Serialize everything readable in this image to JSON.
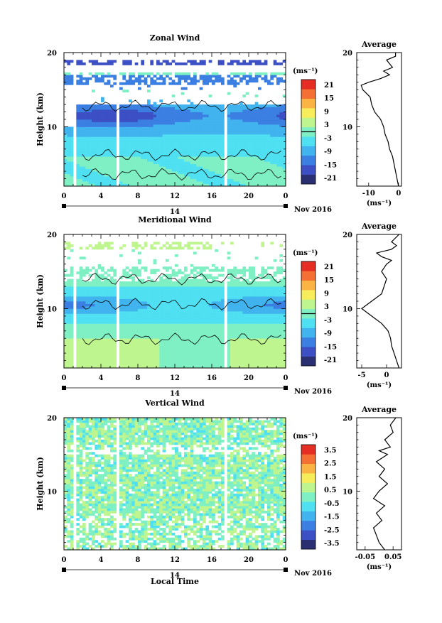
{
  "figure": {
    "xlabel": "Local Time"
  },
  "colors": {
    "scale": [
      "#2a2f72",
      "#3c4fc4",
      "#3b7fe2",
      "#41b3ee",
      "#4fe0f2",
      "#7ff0c4",
      "#bff58f",
      "#f7ec5a",
      "#f9b443",
      "#f36f33",
      "#e62d23"
    ],
    "zero_line": "#000000"
  },
  "chart_data": [
    {
      "type": "heatmap",
      "title": "Zonal Wind",
      "ylabel": "Height (km)",
      "ylim": [
        2,
        20
      ],
      "yticks": [
        10,
        20
      ],
      "x_ticks": [
        "0",
        "4",
        "8",
        "12",
        "16",
        "20",
        "0"
      ],
      "date_tick": "14",
      "date_label": "Nov 2016",
      "gaps": [
        1.2,
        5.8,
        17.6
      ],
      "colorbar": {
        "unit": "(ms⁻¹)",
        "ticks": [
          "21",
          "15",
          "9",
          "3",
          "-3",
          "-9",
          "-15",
          "-21"
        ],
        "range": [
          -24,
          24
        ],
        "zero_line": 0
      },
      "average": {
        "title": "Average",
        "xlabel": "(ms⁻¹)",
        "xticks": [
          "-10",
          "0"
        ],
        "xlim": [
          -14,
          1
        ],
        "yticks": [
          "10",
          "20"
        ],
        "profile": [
          [
            0.0,
            2
          ],
          [
            -0.5,
            3
          ],
          [
            -1,
            4
          ],
          [
            -1.5,
            5
          ],
          [
            -2,
            6
          ],
          [
            -3,
            7
          ],
          [
            -3.5,
            8
          ],
          [
            -4.5,
            9
          ],
          [
            -5,
            10
          ],
          [
            -6,
            11
          ],
          [
            -8,
            12
          ],
          [
            -9,
            13
          ],
          [
            -9.5,
            14
          ],
          [
            -12,
            15
          ],
          [
            -12.5,
            15.6
          ],
          [
            -10,
            16
          ],
          [
            -6,
            16.5
          ],
          [
            -3,
            17
          ],
          [
            -5,
            17.5
          ],
          [
            -2,
            18
          ],
          [
            -3,
            18.5
          ],
          [
            -4,
            19
          ],
          [
            -1,
            19.5
          ],
          [
            -1,
            20
          ]
        ]
      }
    },
    {
      "type": "heatmap",
      "title": "Meridional Wind",
      "ylabel": "Height (km)",
      "ylim": [
        2,
        20
      ],
      "yticks": [
        10,
        20
      ],
      "x_ticks": [
        "0",
        "4",
        "8",
        "12",
        "16",
        "20",
        "0"
      ],
      "date_tick": "14",
      "date_label": "Nov 2016",
      "gaps": [
        1.2,
        5.8,
        17.6
      ],
      "colorbar": {
        "unit": "(ms⁻¹)",
        "ticks": [
          "21",
          "15",
          "9",
          "3",
          "-3",
          "-9",
          "-15",
          "-21"
        ],
        "range": [
          -24,
          24
        ],
        "zero_line": 0
      },
      "average": {
        "title": "Average",
        "xlabel": "(ms⁻¹)",
        "xticks": [
          "-5",
          "0"
        ],
        "xlim": [
          -6,
          3
        ],
        "yticks": [
          "10",
          "20"
        ],
        "profile": [
          [
            2.5,
            2
          ],
          [
            2,
            3
          ],
          [
            1.5,
            4
          ],
          [
            1,
            5
          ],
          [
            0.8,
            6
          ],
          [
            0.3,
            7
          ],
          [
            -1,
            8
          ],
          [
            -3,
            9
          ],
          [
            -5,
            10
          ],
          [
            -3,
            11
          ],
          [
            -1,
            12
          ],
          [
            -0.5,
            13
          ],
          [
            0,
            14
          ],
          [
            -1,
            15
          ],
          [
            0,
            16
          ],
          [
            1,
            16.5
          ],
          [
            -1,
            17
          ],
          [
            -2,
            17.5
          ],
          [
            1,
            18
          ],
          [
            2,
            18.5
          ],
          [
            1,
            19
          ],
          [
            2.5,
            20
          ]
        ]
      }
    },
    {
      "type": "heatmap",
      "title": "Vertical Wind",
      "ylabel": "Height (km)",
      "ylim": [
        2,
        20
      ],
      "yticks": [
        10,
        20
      ],
      "x_ticks": [
        "0",
        "4",
        "8",
        "12",
        "16",
        "20",
        "0"
      ],
      "date_tick": "14",
      "date_label": "Nov 2016",
      "gaps": [
        1.2,
        5.8,
        17.6
      ],
      "colorbar": {
        "unit": "(ms⁻¹)",
        "ticks": [
          "3.5",
          "2.5",
          "1.5",
          "0.5",
          "-0.5",
          "-1.5",
          "-2.5",
          "-3.5"
        ],
        "range": [
          -4,
          4
        ],
        "zero_line": null
      },
      "average": {
        "title": "Average",
        "xlabel": "(ms⁻¹)",
        "xticks": [
          "-0.05",
          "0.05"
        ],
        "xlim": [
          -0.08,
          0.08
        ],
        "yticks": [
          "10",
          "20"
        ],
        "profile": [
          [
            0.02,
            2
          ],
          [
            0.0,
            3
          ],
          [
            -0.01,
            4
          ],
          [
            -0.02,
            5
          ],
          [
            0.01,
            6
          ],
          [
            -0.01,
            7
          ],
          [
            0.02,
            8
          ],
          [
            -0.02,
            9
          ],
          [
            0.0,
            10
          ],
          [
            0.03,
            11
          ],
          [
            0.0,
            12
          ],
          [
            0.02,
            13
          ],
          [
            -0.01,
            14
          ],
          [
            0.03,
            15
          ],
          [
            0.0,
            15.5
          ],
          [
            0.04,
            16
          ],
          [
            0.02,
            17
          ],
          [
            0.05,
            18
          ],
          [
            0.04,
            19
          ],
          [
            0.06,
            20
          ]
        ]
      }
    }
  ]
}
